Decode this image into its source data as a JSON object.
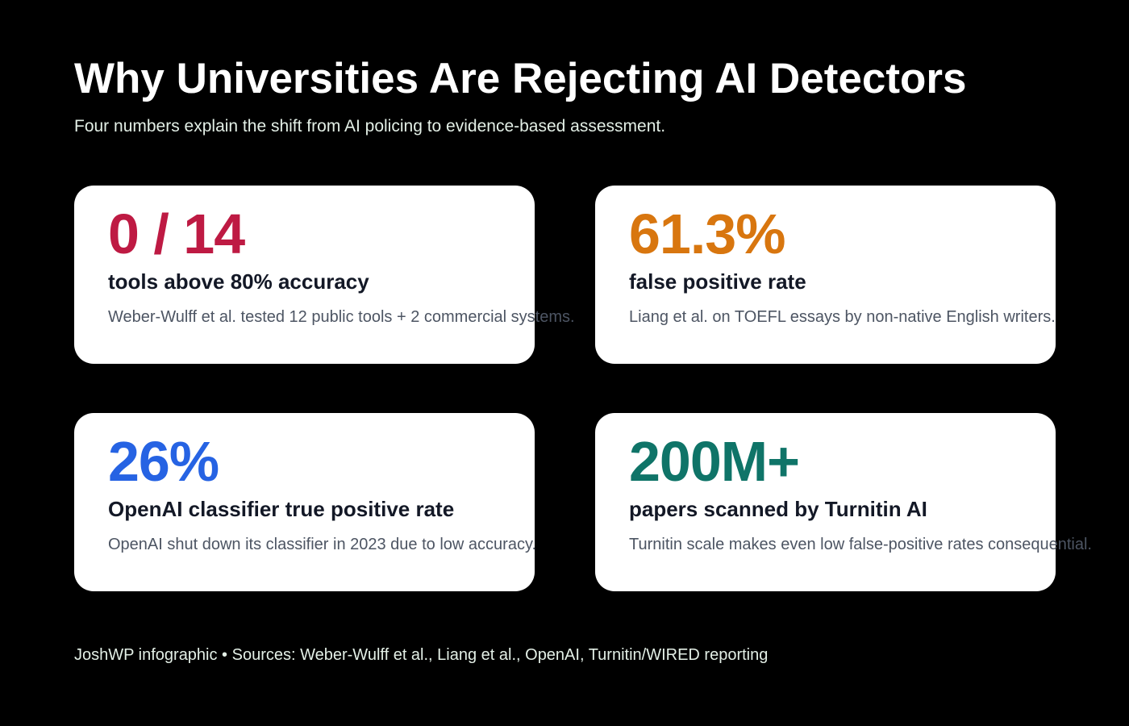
{
  "header": {
    "title": "Why Universities Are Rejecting AI Detectors",
    "subtitle": "Four numbers explain the shift from AI policing to evidence-based assessment."
  },
  "cards": [
    {
      "stat": "0 / 14",
      "label": "tools above 80% accuracy",
      "note": "Weber-Wulff et al. tested 12 public tools + 2 commercial systems.",
      "color": "#be1a43"
    },
    {
      "stat": "61.3%",
      "label": "false positive rate",
      "note": "Liang et al. on TOEFL essays by non-native English writers.",
      "color": "#d8760f"
    },
    {
      "stat": "26%",
      "label": "OpenAI classifier true positive rate",
      "note": "OpenAI shut down its classifier in 2023 due to low accuracy.",
      "color": "#2663e3"
    },
    {
      "stat": "200M+",
      "label": "papers scanned by Turnitin AI",
      "note": "Turnitin scale makes even low false-positive rates consequential.",
      "color": "#0f7468"
    }
  ],
  "footer": {
    "text": "JoshWP infographic • Sources: Weber-Wulff et al., Liang et al., OpenAI, Turnitin/WIRED reporting"
  }
}
